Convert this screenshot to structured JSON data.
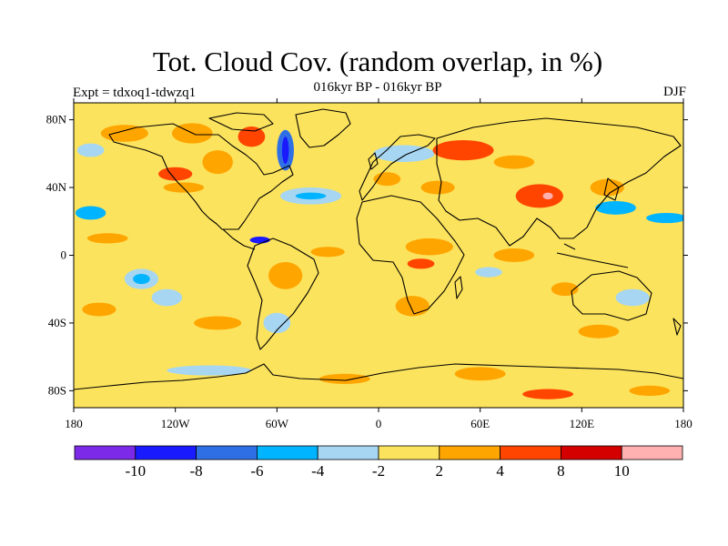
{
  "header": {
    "title": "Tot. Cloud Cov. (random overlap, in %)",
    "subtitle": "016kyr BP - 016kyr BP",
    "experiment": "Expt = tdxoq1-tdwzq1",
    "season": "DJF"
  },
  "map": {
    "lon_range": [
      -180,
      180
    ],
    "lat_range": [
      -90,
      90
    ],
    "background_color": "#fce35d",
    "lat_ticks": [
      {
        "value": 80,
        "label": "80N"
      },
      {
        "value": 40,
        "label": "40N"
      },
      {
        "value": 0,
        "label": "0"
      },
      {
        "value": -40,
        "label": "40S"
      },
      {
        "value": -80,
        "label": "80S"
      }
    ],
    "lon_ticks": [
      {
        "value": -180,
        "label": "180"
      },
      {
        "value": -120,
        "label": "120W"
      },
      {
        "value": -60,
        "label": "60W"
      },
      {
        "value": 0,
        "label": "0"
      },
      {
        "value": 60,
        "label": "60E"
      },
      {
        "value": 120,
        "label": "120E"
      },
      {
        "value": 180,
        "label": "180"
      }
    ],
    "anomaly_patches": [
      {
        "lon": -150,
        "lat": 72,
        "rx": 14,
        "ry": 5,
        "color": "#ffa500"
      },
      {
        "lon": -110,
        "lat": 72,
        "rx": 12,
        "ry": 6,
        "color": "#ffa500"
      },
      {
        "lon": -95,
        "lat": 55,
        "rx": 9,
        "ry": 7,
        "color": "#ffa500"
      },
      {
        "lon": -75,
        "lat": 70,
        "rx": 8,
        "ry": 6,
        "color": "#ff4500"
      },
      {
        "lon": -55,
        "lat": 62,
        "rx": 5,
        "ry": 12,
        "color": "#2f6fe6"
      },
      {
        "lon": -55,
        "lat": 62,
        "rx": 2,
        "ry": 8,
        "color": "#1a1aff"
      },
      {
        "lon": -170,
        "lat": 62,
        "rx": 8,
        "ry": 4,
        "color": "#a6d6f2"
      },
      {
        "lon": -120,
        "lat": 48,
        "rx": 10,
        "ry": 4,
        "color": "#ff4500"
      },
      {
        "lon": -115,
        "lat": 40,
        "rx": 12,
        "ry": 3,
        "color": "#ffa500"
      },
      {
        "lon": -40,
        "lat": 35,
        "rx": 18,
        "ry": 5,
        "color": "#a6d6f2"
      },
      {
        "lon": -40,
        "lat": 35,
        "rx": 9,
        "ry": 2,
        "color": "#00b4ff"
      },
      {
        "lon": -170,
        "lat": 25,
        "rx": 9,
        "ry": 4,
        "color": "#00b4ff"
      },
      {
        "lon": -160,
        "lat": 10,
        "rx": 12,
        "ry": 3,
        "color": "#ffa500"
      },
      {
        "lon": -140,
        "lat": -14,
        "rx": 10,
        "ry": 6,
        "color": "#a6d6f2"
      },
      {
        "lon": -140,
        "lat": -14,
        "rx": 5,
        "ry": 3,
        "color": "#00b4ff"
      },
      {
        "lon": -125,
        "lat": -25,
        "rx": 9,
        "ry": 5,
        "color": "#a6d6f2"
      },
      {
        "lon": -165,
        "lat": -32,
        "rx": 10,
        "ry": 4,
        "color": "#ffa500"
      },
      {
        "lon": -95,
        "lat": -40,
        "rx": 14,
        "ry": 4,
        "color": "#ffa500"
      },
      {
        "lon": -55,
        "lat": -12,
        "rx": 10,
        "ry": 8,
        "color": "#ffa500"
      },
      {
        "lon": -60,
        "lat": -40,
        "rx": 8,
        "ry": 6,
        "color": "#a6d6f2"
      },
      {
        "lon": -70,
        "lat": 9,
        "rx": 6,
        "ry": 2,
        "color": "#1a1aff"
      },
      {
        "lon": -30,
        "lat": 2,
        "rx": 10,
        "ry": 3,
        "color": "#ffa500"
      },
      {
        "lon": 15,
        "lat": 60,
        "rx": 18,
        "ry": 5,
        "color": "#a6d6f2"
      },
      {
        "lon": 50,
        "lat": 62,
        "rx": 18,
        "ry": 6,
        "color": "#ff4500"
      },
      {
        "lon": 80,
        "lat": 55,
        "rx": 12,
        "ry": 4,
        "color": "#ffa500"
      },
      {
        "lon": 5,
        "lat": 45,
        "rx": 8,
        "ry": 4,
        "color": "#ffa500"
      },
      {
        "lon": 35,
        "lat": 40,
        "rx": 10,
        "ry": 4,
        "color": "#ffa500"
      },
      {
        "lon": 95,
        "lat": 35,
        "rx": 14,
        "ry": 7,
        "color": "#ff4500"
      },
      {
        "lon": 100,
        "lat": 35,
        "rx": 3,
        "ry": 2,
        "color": "#ffb0b0"
      },
      {
        "lon": 135,
        "lat": 40,
        "rx": 10,
        "ry": 5,
        "color": "#ffa500"
      },
      {
        "lon": 140,
        "lat": 28,
        "rx": 12,
        "ry": 4,
        "color": "#00b4ff"
      },
      {
        "lon": 170,
        "lat": 22,
        "rx": 12,
        "ry": 3,
        "color": "#00b4ff"
      },
      {
        "lon": 30,
        "lat": 5,
        "rx": 14,
        "ry": 5,
        "color": "#ffa500"
      },
      {
        "lon": 25,
        "lat": -5,
        "rx": 8,
        "ry": 3,
        "color": "#ff4500"
      },
      {
        "lon": 80,
        "lat": 0,
        "rx": 12,
        "ry": 4,
        "color": "#ffa500"
      },
      {
        "lon": 65,
        "lat": -10,
        "rx": 8,
        "ry": 3,
        "color": "#a6d6f2"
      },
      {
        "lon": 110,
        "lat": -20,
        "rx": 8,
        "ry": 4,
        "color": "#ffa500"
      },
      {
        "lon": 150,
        "lat": -25,
        "rx": 10,
        "ry": 5,
        "color": "#a6d6f2"
      },
      {
        "lon": 20,
        "lat": -30,
        "rx": 10,
        "ry": 6,
        "color": "#ffa500"
      },
      {
        "lon": 130,
        "lat": -45,
        "rx": 12,
        "ry": 4,
        "color": "#ffa500"
      },
      {
        "lon": -100,
        "lat": -68,
        "rx": 25,
        "ry": 3,
        "color": "#a6d6f2"
      },
      {
        "lon": -20,
        "lat": -73,
        "rx": 15,
        "ry": 3,
        "color": "#ffa500"
      },
      {
        "lon": 60,
        "lat": -70,
        "rx": 15,
        "ry": 4,
        "color": "#ffa500"
      },
      {
        "lon": 100,
        "lat": -82,
        "rx": 15,
        "ry": 3,
        "color": "#ff4500"
      },
      {
        "lon": 160,
        "lat": -80,
        "rx": 12,
        "ry": 3,
        "color": "#ffa500"
      }
    ]
  },
  "colorbar": {
    "colors": [
      "#7d2ae8",
      "#1a1aff",
      "#2f6fe6",
      "#00b4ff",
      "#a6d6f2",
      "#fce35d",
      "#ffa500",
      "#ff4500",
      "#d40000",
      "#ffb0b0"
    ],
    "labels": [
      "-10",
      "-8",
      "-6",
      "-4",
      "-2",
      "2",
      "4",
      "8",
      "10"
    ]
  }
}
